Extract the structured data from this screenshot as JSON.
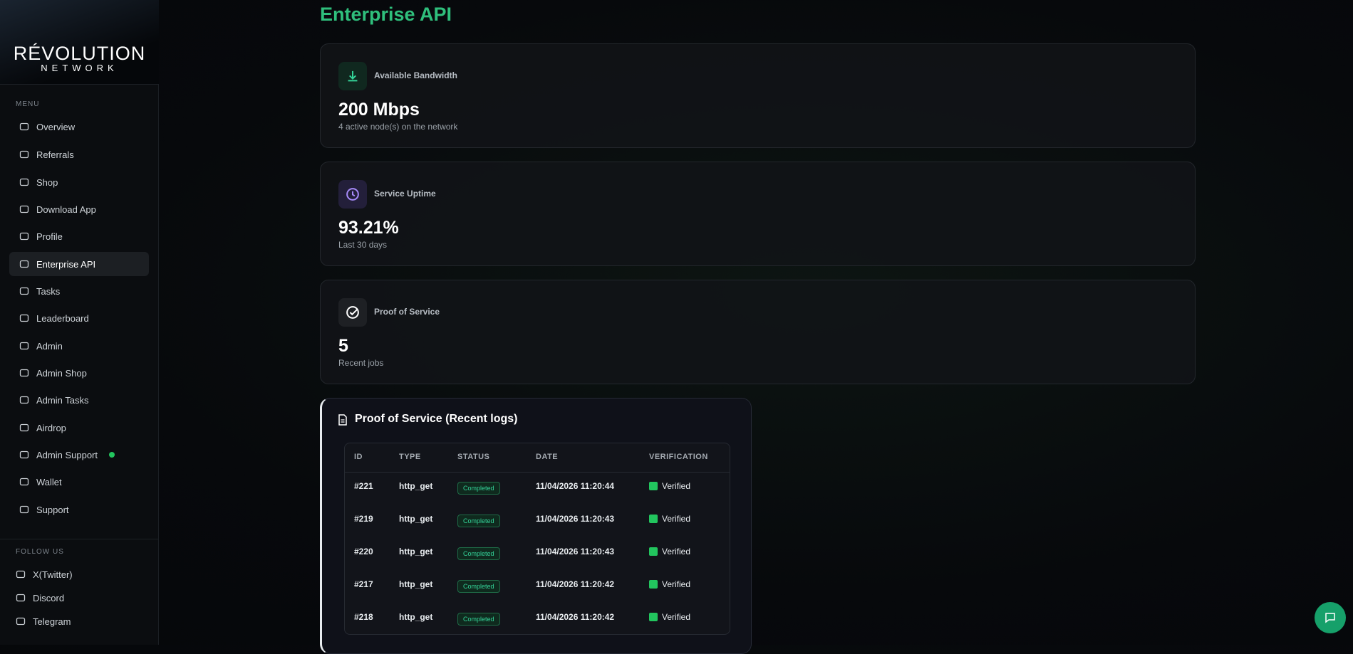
{
  "sidebar": {
    "logo": {
      "title": "RÉVOLUTION",
      "subtitle": "NETWORK"
    },
    "menu_label": "MENU",
    "menu": [
      "Overview",
      "Referrals",
      "Shop",
      "Download App",
      "Profile",
      "Enterprise API",
      "Tasks",
      "Leaderboard",
      "Admin",
      "Admin Shop",
      "Admin Tasks",
      "Airdrop",
      "Admin Support",
      "Wallet",
      "Support"
    ],
    "follow_label": "FOLLOW US",
    "social": [
      "X(Twitter)",
      "Discord",
      "Telegram"
    ]
  },
  "page": {
    "title": "Enterprise API"
  },
  "cards": [
    {
      "label": "Available Bandwidth",
      "value": "200 Mbps",
      "note": "4 active node(s) on the network"
    },
    {
      "label": "Service Uptime",
      "value": "93.21%",
      "note": "Last 30 days"
    },
    {
      "label": "Proof of Service",
      "value": "5",
      "note": "Recent jobs"
    }
  ],
  "logs": {
    "title": "Proof of Service (Recent logs)",
    "columns": [
      "ID",
      "TYPE",
      "STATUS",
      "DATE",
      "VERIFICATION"
    ],
    "rows": [
      [
        "#221",
        "http_get",
        "Completed",
        "11/04/2026 11:20:44",
        "Verified"
      ],
      [
        "#219",
        "http_get",
        "Completed",
        "11/04/2026 11:20:43",
        "Verified"
      ],
      [
        "#220",
        "http_get",
        "Completed",
        "11/04/2026 11:20:43",
        "Verified"
      ],
      [
        "#217",
        "http_get",
        "Completed",
        "11/04/2026 11:20:42",
        "Verified"
      ],
      [
        "#218",
        "http_get",
        "Completed",
        "11/04/2026 11:20:42",
        "Verified"
      ]
    ]
  }
}
